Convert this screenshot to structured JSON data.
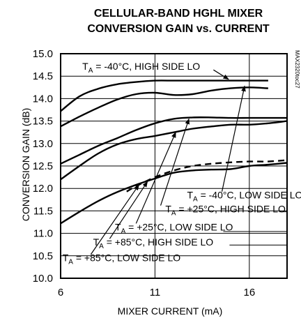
{
  "chart_data": {
    "type": "line",
    "title_line1": "CELLULAR-BAND HGHL MIXER",
    "title_line2": "CONVERSION GAIN vs. CURRENT",
    "xlabel": "MIXER CURRENT (mA)",
    "ylabel": "CONVERSION GAIN (dB)",
    "xlim": [
      6,
      18
    ],
    "ylim": [
      10.0,
      15.0
    ],
    "xticks": [
      6,
      11,
      16
    ],
    "yticks": [
      "10.0",
      "10.5",
      "11.0",
      "11.5",
      "12.0",
      "12.5",
      "13.0",
      "13.5",
      "14.0",
      "14.5",
      "15.0"
    ],
    "grid": true,
    "watermark": "MAX2320toc27",
    "series": [
      {
        "name": "TA = -40°C, HIGH SIDE LO",
        "dashed": false,
        "x": [
          6,
          7,
          8,
          9,
          10,
          11,
          12,
          13,
          14,
          15,
          16,
          17
        ],
        "y": [
          13.72,
          14.05,
          14.22,
          14.32,
          14.37,
          14.4,
          14.4,
          14.4,
          14.4,
          14.4,
          14.4,
          14.4
        ]
      },
      {
        "name": "TA = -40°C, LOW SIDE LO",
        "dashed": false,
        "x": [
          6,
          7,
          8,
          9,
          10,
          11,
          12,
          13,
          14,
          15,
          16,
          17
        ],
        "y": [
          13.38,
          13.6,
          13.8,
          13.98,
          14.1,
          14.13,
          14.08,
          14.1,
          14.18,
          14.23,
          14.25,
          14.23
        ]
      },
      {
        "name": "TA = +25°C, HIGH SIDE LO",
        "dashed": false,
        "x": [
          6,
          7,
          8,
          9,
          10,
          11,
          12,
          13,
          14,
          15,
          16,
          17,
          18
        ],
        "y": [
          12.55,
          12.75,
          12.95,
          13.12,
          13.3,
          13.45,
          13.55,
          13.58,
          13.58,
          13.57,
          13.57,
          13.57,
          13.57
        ]
      },
      {
        "name": "TA = +25°C, LOW SIDE LO",
        "dashed": false,
        "x": [
          6,
          7,
          8,
          9,
          10,
          11,
          12,
          13,
          14,
          15,
          16,
          17,
          18
        ],
        "y": [
          12.2,
          12.5,
          12.78,
          12.98,
          13.1,
          13.17,
          13.25,
          13.33,
          13.38,
          13.42,
          13.42,
          13.45,
          13.5
        ]
      },
      {
        "name": "TA = +85°C, HIGH SIDE LO",
        "dashed": true,
        "x": [
          9.5,
          10,
          11,
          12,
          13,
          14,
          15,
          16,
          17,
          18
        ],
        "y": [
          11.93,
          12.05,
          12.25,
          12.4,
          12.5,
          12.55,
          12.58,
          12.6,
          12.6,
          12.63
        ]
      },
      {
        "name": "TA = +85°C, LOW SIDE LO",
        "dashed": false,
        "x": [
          6,
          7,
          8,
          9,
          10,
          11,
          12,
          13,
          14,
          15,
          16,
          17,
          18
        ],
        "y": [
          11.22,
          11.48,
          11.72,
          11.92,
          12.08,
          12.22,
          12.35,
          12.4,
          12.42,
          12.43,
          12.5,
          12.53,
          12.57
        ]
      }
    ],
    "annotations": [
      {
        "pre": "T",
        "sub": "A",
        "post": " = -40°C, HIGH SIDE LO",
        "text_x": 7.15,
        "text_y": 14.64,
        "line": [
          [
            14.1,
            14.64
          ],
          [
            14.9,
            14.43
          ]
        ],
        "arrow_to": [
          15.3,
          14.38
        ]
      },
      {
        "pre": "T",
        "sub": "A",
        "post": " = -40°C, LOW SIDE LO",
        "text_x": 12.7,
        "text_y": 11.78,
        "line": [
          [
            14.55,
            11.93
          ],
          [
            15.75,
            14.28
          ]
        ],
        "arrow_to": [
          15.75,
          14.28
        ]
      },
      {
        "pre": "T",
        "sub": "A",
        "post": " = +25°C, HIGH SIDE LO",
        "text_x": 11.55,
        "text_y": 11.47,
        "line": [
          [
            11.3,
            11.62
          ],
          [
            12.8,
            13.55
          ]
        ],
        "arrow_to": [
          12.8,
          13.55
        ]
      },
      {
        "pre": "T",
        "sub": "A",
        "post": " = +25°C, LOW SIDE LO",
        "text_x": 8.88,
        "text_y": 11.06,
        "line": [
          [
            10.0,
            11.22
          ],
          [
            12.1,
            13.25
          ]
        ],
        "arrow_to": [
          12.1,
          13.25
        ]
      },
      {
        "pre": "T",
        "sub": "A",
        "post": " = +85°C, HIGH SIDE LO",
        "text_x": 7.72,
        "text_y": 10.73,
        "line": [
          [
            8.6,
            10.88
          ],
          [
            10.6,
            12.15
          ]
        ],
        "arrow_to": [
          10.6,
          12.15
        ]
      },
      {
        "pre": "T",
        "sub": "A",
        "post": " = +85°C, LOW SIDE LO",
        "text_x": 6.1,
        "text_y": 10.38,
        "line": [
          [
            7.6,
            10.53
          ],
          [
            10.15,
            12.08
          ]
        ],
        "arrow_to": [
          10.15,
          12.08
        ]
      }
    ],
    "leaders": [
      {
        "from": [
          17.72,
          11.78
        ],
        "to": [
          18.0,
          11.78
        ]
      },
      {
        "from": [
          17.58,
          11.48
        ],
        "to": [
          18.0,
          11.48
        ]
      },
      {
        "from": [
          14.62,
          11.04
        ],
        "to": [
          18.0,
          11.04
        ]
      },
      {
        "from": [
          14.95,
          10.74
        ],
        "to": [
          18.0,
          10.74
        ]
      }
    ]
  }
}
